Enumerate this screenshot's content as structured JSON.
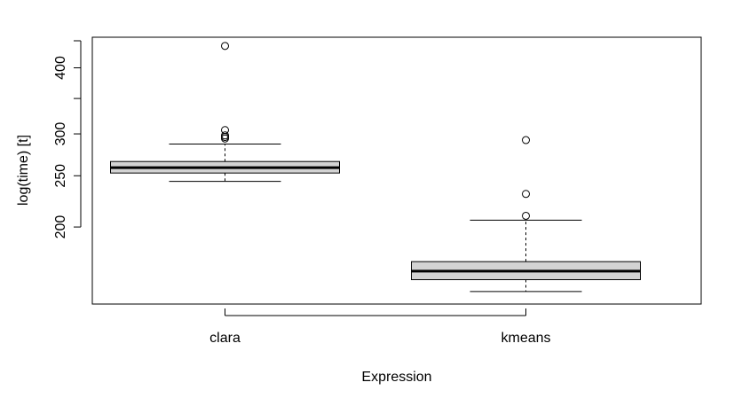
{
  "chart_data": {
    "type": "boxplot",
    "xlabel": "Expression",
    "ylabel": "log(time) [t]",
    "y_scale": "log",
    "y_ticks": [
      200,
      250,
      300,
      400
    ],
    "y_tick_labels": [
      "200",
      "250",
      "300",
      "400"
    ],
    "ylim": [
      143,
      457
    ],
    "categories": [
      "clara",
      "kmeans"
    ],
    "box_fill": "#d3d3d3",
    "boxes": [
      {
        "name": "clara",
        "whisker_low": 244,
        "q1": 253,
        "median": 259,
        "q3": 266,
        "whisker_high": 287,
        "outliers": [
          294,
          296,
          298,
          305,
          440
        ]
      },
      {
        "name": "kmeans",
        "whisker_low": 151,
        "q1": 159,
        "median": 165,
        "q3": 172,
        "whisker_high": 206,
        "outliers": [
          210,
          231,
          292
        ]
      }
    ]
  }
}
